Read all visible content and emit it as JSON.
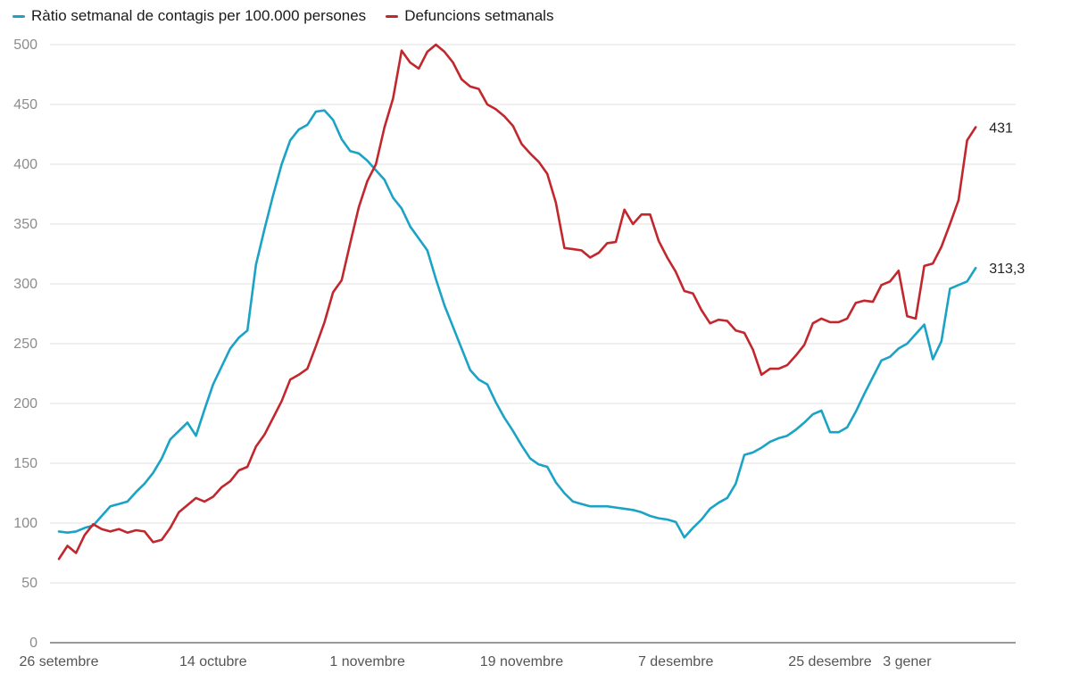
{
  "chart_data": {
    "type": "line",
    "title": "",
    "xlabel": "",
    "ylabel": "",
    "ylim": [
      0,
      500
    ],
    "yticks": [
      "0",
      "50",
      "100",
      "150",
      "200",
      "250",
      "300",
      "350",
      "400",
      "450",
      "500"
    ],
    "grid": true,
    "legend_position": "top-left",
    "x_start": "26 setembre",
    "x_tick_labels": [
      {
        "label": "26 setembre",
        "day": 0
      },
      {
        "label": "14 octubre",
        "day": 18
      },
      {
        "label": "1 novembre",
        "day": 36
      },
      {
        "label": "19 novembre",
        "day": 54
      },
      {
        "label": "7 desembre",
        "day": 72
      },
      {
        "label": "25 desembre",
        "day": 90
      },
      {
        "label": "3 gener",
        "day": 99
      }
    ],
    "series": [
      {
        "name": "Ràtio setmanal de contagis per 100.000 persones",
        "color": "#1ba3c6",
        "end_label": "313,3",
        "values": [
          93,
          92,
          93,
          96,
          98,
          106,
          114,
          116,
          118,
          126,
          133,
          142,
          154,
          170,
          177,
          184,
          173,
          195,
          216,
          231,
          246,
          255,
          261,
          316,
          346,
          374,
          400,
          420,
          429,
          433,
          444,
          445,
          437,
          421,
          411,
          409,
          403,
          395,
          387,
          372,
          363,
          348,
          338,
          328,
          304,
          282,
          264,
          246,
          228,
          220,
          216,
          201,
          188,
          177,
          165,
          154,
          149,
          147,
          134,
          125,
          118,
          116,
          114,
          114,
          114,
          113,
          112,
          111,
          109,
          106,
          104,
          103,
          101,
          88,
          96,
          103,
          112,
          117,
          121,
          133,
          157,
          159,
          163,
          168,
          171,
          173,
          178,
          184,
          191,
          194,
          176,
          176,
          180,
          193,
          208,
          222,
          236,
          239,
          246,
          250,
          258,
          266,
          237,
          252,
          296,
          299,
          302,
          313.3
        ]
      },
      {
        "name": "Defuncions setmanals",
        "color": "#c1272d",
        "end_label": "431",
        "values": [
          70,
          81,
          75,
          90,
          99,
          95,
          93,
          95,
          92,
          94,
          93,
          84,
          86,
          96,
          109,
          115,
          121,
          118,
          122,
          130,
          135,
          144,
          147,
          164,
          174,
          188,
          202,
          220,
          224,
          229,
          248,
          268,
          293,
          303,
          334,
          364,
          386,
          400,
          431,
          455,
          495,
          485,
          480,
          494,
          500,
          494,
          485,
          471,
          465,
          463,
          450,
          446,
          440,
          432,
          417,
          409,
          402,
          392,
          368,
          330,
          329,
          328,
          322,
          326,
          334,
          335,
          362,
          350,
          358,
          358,
          336,
          322,
          310,
          294,
          292,
          278,
          267,
          270,
          269,
          261,
          259,
          245,
          224,
          229,
          229,
          232,
          240,
          249,
          267,
          271,
          268,
          268,
          271,
          284,
          286,
          285,
          299,
          302,
          311,
          273,
          271,
          315,
          317,
          331,
          350,
          370,
          420,
          431
        ]
      }
    ]
  }
}
